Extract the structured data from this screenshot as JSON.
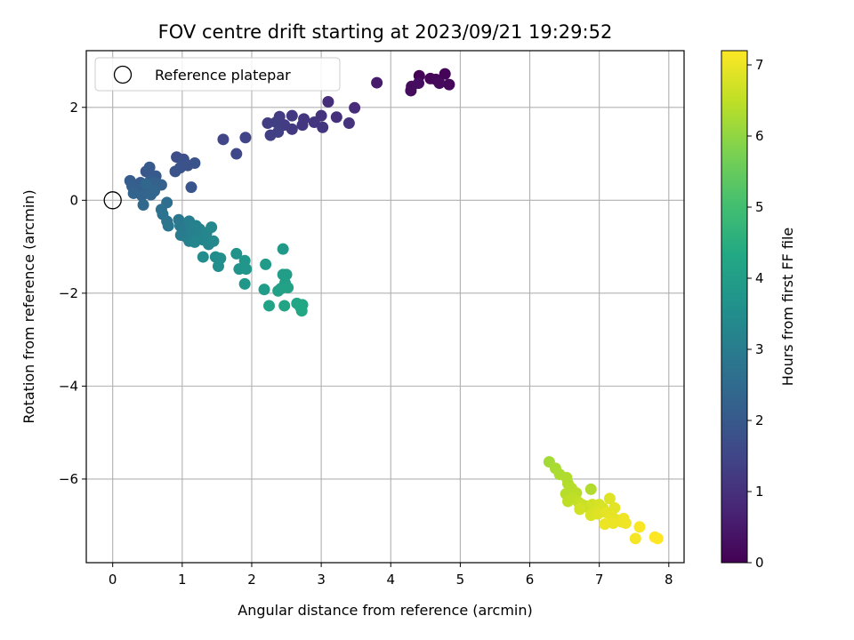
{
  "chart_data": {
    "type": "scatter",
    "title": "FOV centre drift starting at 2023/09/21 19:29:52",
    "xlabel": "Angular distance from reference (arcmin)",
    "ylabel": "Rotation from reference (arcmin)",
    "xlim": [
      -0.38,
      8.22
    ],
    "ylim": [
      -7.8,
      3.22
    ],
    "xticks": [
      0,
      1,
      2,
      3,
      4,
      5,
      6,
      7,
      8
    ],
    "yticks": [
      -6,
      -4,
      -2,
      0,
      2
    ],
    "grid": true,
    "legend": {
      "placement": "top-left",
      "entries": [
        "Reference platepar"
      ]
    },
    "reference_point": {
      "x": 0,
      "y": 0
    },
    "colorbar": {
      "label": "Hours from first FF file",
      "range": [
        0,
        7.2
      ],
      "ticks": [
        0,
        1,
        2,
        3,
        4,
        5,
        6,
        7
      ],
      "colormap": "viridis"
    },
    "points": [
      {
        "x": 4.41,
        "y": 2.68,
        "c": 0.05
      },
      {
        "x": 4.57,
        "y": 2.62,
        "c": 0.1
      },
      {
        "x": 4.65,
        "y": 2.6,
        "c": 0.12
      },
      {
        "x": 4.78,
        "y": 2.72,
        "c": 0.08
      },
      {
        "x": 4.84,
        "y": 2.49,
        "c": 0.15
      },
      {
        "x": 4.7,
        "y": 2.52,
        "c": 0.18
      },
      {
        "x": 4.3,
        "y": 2.45,
        "c": 0.2
      },
      {
        "x": 4.29,
        "y": 2.36,
        "c": 0.22
      },
      {
        "x": 4.4,
        "y": 2.52,
        "c": 0.25
      },
      {
        "x": 3.8,
        "y": 2.53,
        "c": 0.55
      },
      {
        "x": 3.48,
        "y": 1.99,
        "c": 0.9
      },
      {
        "x": 3.1,
        "y": 2.12,
        "c": 0.95
      },
      {
        "x": 3.22,
        "y": 1.79,
        "c": 1.0
      },
      {
        "x": 3.4,
        "y": 1.66,
        "c": 1.05
      },
      {
        "x": 3.0,
        "y": 1.82,
        "c": 1.05
      },
      {
        "x": 3.02,
        "y": 1.57,
        "c": 1.1
      },
      {
        "x": 2.9,
        "y": 1.68,
        "c": 1.1
      },
      {
        "x": 2.75,
        "y": 1.75,
        "c": 1.15
      },
      {
        "x": 2.73,
        "y": 1.62,
        "c": 1.15
      },
      {
        "x": 2.58,
        "y": 1.82,
        "c": 1.2
      },
      {
        "x": 2.58,
        "y": 1.53,
        "c": 1.2
      },
      {
        "x": 2.47,
        "y": 1.62,
        "c": 1.25
      },
      {
        "x": 2.4,
        "y": 1.8,
        "c": 1.25
      },
      {
        "x": 2.35,
        "y": 1.68,
        "c": 1.3
      },
      {
        "x": 2.23,
        "y": 1.66,
        "c": 1.3
      },
      {
        "x": 2.38,
        "y": 1.47,
        "c": 1.35
      },
      {
        "x": 2.27,
        "y": 1.4,
        "c": 1.35
      },
      {
        "x": 1.91,
        "y": 1.35,
        "c": 1.45
      },
      {
        "x": 1.59,
        "y": 1.31,
        "c": 1.5
      },
      {
        "x": 1.78,
        "y": 1.0,
        "c": 1.55
      },
      {
        "x": 0.92,
        "y": 0.93,
        "c": 1.7
      },
      {
        "x": 1.02,
        "y": 0.88,
        "c": 1.75
      },
      {
        "x": 0.97,
        "y": 0.7,
        "c": 1.8
      },
      {
        "x": 1.08,
        "y": 0.75,
        "c": 1.8
      },
      {
        "x": 1.18,
        "y": 0.8,
        "c": 1.85
      },
      {
        "x": 0.9,
        "y": 0.62,
        "c": 1.85
      },
      {
        "x": 1.13,
        "y": 0.28,
        "c": 1.9
      },
      {
        "x": 0.48,
        "y": 0.62,
        "c": 1.95
      },
      {
        "x": 0.53,
        "y": 0.71,
        "c": 2.0
      },
      {
        "x": 0.62,
        "y": 0.52,
        "c": 2.0
      },
      {
        "x": 0.55,
        "y": 0.45,
        "c": 2.05
      },
      {
        "x": 0.4,
        "y": 0.38,
        "c": 2.1
      },
      {
        "x": 0.25,
        "y": 0.42,
        "c": 2.1
      },
      {
        "x": 0.28,
        "y": 0.3,
        "c": 2.15
      },
      {
        "x": 0.35,
        "y": 0.25,
        "c": 2.15
      },
      {
        "x": 0.45,
        "y": 0.2,
        "c": 2.2
      },
      {
        "x": 0.52,
        "y": 0.3,
        "c": 2.2
      },
      {
        "x": 0.6,
        "y": 0.38,
        "c": 2.25
      },
      {
        "x": 0.7,
        "y": 0.33,
        "c": 2.25
      },
      {
        "x": 0.3,
        "y": 0.15,
        "c": 2.3
      },
      {
        "x": 0.42,
        "y": 0.1,
        "c": 2.3
      },
      {
        "x": 0.55,
        "y": 0.12,
        "c": 2.35
      },
      {
        "x": 0.6,
        "y": 0.2,
        "c": 2.35
      },
      {
        "x": 0.48,
        "y": 0.35,
        "c": 2.4
      },
      {
        "x": 0.44,
        "y": -0.1,
        "c": 2.45
      },
      {
        "x": 0.78,
        "y": -0.05,
        "c": 2.6
      },
      {
        "x": 0.7,
        "y": -0.2,
        "c": 2.65
      },
      {
        "x": 0.72,
        "y": -0.3,
        "c": 2.7
      },
      {
        "x": 0.78,
        "y": -0.45,
        "c": 2.75
      },
      {
        "x": 0.8,
        "y": -0.55,
        "c": 2.8
      },
      {
        "x": 0.95,
        "y": -0.42,
        "c": 2.85
      },
      {
        "x": 0.97,
        "y": -0.55,
        "c": 2.9
      },
      {
        "x": 1.02,
        "y": -0.62,
        "c": 2.95
      },
      {
        "x": 0.98,
        "y": -0.75,
        "c": 3.0
      },
      {
        "x": 1.05,
        "y": -0.78,
        "c": 3.0
      },
      {
        "x": 1.1,
        "y": -0.45,
        "c": 3.05
      },
      {
        "x": 1.12,
        "y": -0.6,
        "c": 3.05
      },
      {
        "x": 1.15,
        "y": -0.72,
        "c": 3.1
      },
      {
        "x": 1.1,
        "y": -0.88,
        "c": 3.1
      },
      {
        "x": 1.2,
        "y": -0.55,
        "c": 3.15
      },
      {
        "x": 1.25,
        "y": -0.62,
        "c": 3.2
      },
      {
        "x": 1.28,
        "y": -0.75,
        "c": 3.2
      },
      {
        "x": 1.18,
        "y": -0.9,
        "c": 3.25
      },
      {
        "x": 1.3,
        "y": -0.85,
        "c": 3.25
      },
      {
        "x": 1.35,
        "y": -0.7,
        "c": 3.3
      },
      {
        "x": 1.38,
        "y": -0.95,
        "c": 3.3
      },
      {
        "x": 1.42,
        "y": -0.58,
        "c": 3.35
      },
      {
        "x": 1.45,
        "y": -0.88,
        "c": 3.35
      },
      {
        "x": 1.3,
        "y": -1.22,
        "c": 3.45
      },
      {
        "x": 1.48,
        "y": -1.22,
        "c": 3.5
      },
      {
        "x": 1.52,
        "y": -1.42,
        "c": 3.55
      },
      {
        "x": 1.55,
        "y": -1.25,
        "c": 3.55
      },
      {
        "x": 1.78,
        "y": -1.15,
        "c": 3.65
      },
      {
        "x": 1.82,
        "y": -1.48,
        "c": 3.7
      },
      {
        "x": 1.9,
        "y": -1.3,
        "c": 3.75
      },
      {
        "x": 1.92,
        "y": -1.48,
        "c": 3.75
      },
      {
        "x": 1.9,
        "y": -1.8,
        "c": 3.8
      },
      {
        "x": 2.45,
        "y": -1.05,
        "c": 3.85
      },
      {
        "x": 2.2,
        "y": -1.38,
        "c": 3.9
      },
      {
        "x": 2.18,
        "y": -1.92,
        "c": 3.95
      },
      {
        "x": 2.45,
        "y": -1.6,
        "c": 4.0
      },
      {
        "x": 2.5,
        "y": -1.6,
        "c": 4.0
      },
      {
        "x": 2.48,
        "y": -1.78,
        "c": 4.05
      },
      {
        "x": 2.42,
        "y": -1.9,
        "c": 4.05
      },
      {
        "x": 2.38,
        "y": -1.95,
        "c": 4.1
      },
      {
        "x": 2.52,
        "y": -1.88,
        "c": 4.1
      },
      {
        "x": 2.25,
        "y": -2.27,
        "c": 4.15
      },
      {
        "x": 2.47,
        "y": -2.27,
        "c": 4.2
      },
      {
        "x": 2.65,
        "y": -2.22,
        "c": 4.25
      },
      {
        "x": 2.7,
        "y": -2.3,
        "c": 4.25
      },
      {
        "x": 2.72,
        "y": -2.38,
        "c": 4.3
      },
      {
        "x": 2.73,
        "y": -2.25,
        "c": 4.3
      },
      {
        "x": 6.28,
        "y": -5.63,
        "c": 6.2
      },
      {
        "x": 6.37,
        "y": -5.77,
        "c": 6.25
      },
      {
        "x": 6.43,
        "y": -5.9,
        "c": 6.3
      },
      {
        "x": 6.53,
        "y": -5.97,
        "c": 6.35
      },
      {
        "x": 6.55,
        "y": -6.1,
        "c": 6.35
      },
      {
        "x": 6.88,
        "y": -6.22,
        "c": 6.35
      },
      {
        "x": 6.6,
        "y": -6.2,
        "c": 6.4
      },
      {
        "x": 6.52,
        "y": -6.32,
        "c": 6.4
      },
      {
        "x": 6.67,
        "y": -6.3,
        "c": 6.45
      },
      {
        "x": 6.62,
        "y": -6.42,
        "c": 6.5
      },
      {
        "x": 6.55,
        "y": -6.48,
        "c": 6.5
      },
      {
        "x": 6.7,
        "y": -6.5,
        "c": 6.55
      },
      {
        "x": 6.75,
        "y": -6.55,
        "c": 6.6
      },
      {
        "x": 6.8,
        "y": -6.58,
        "c": 6.6
      },
      {
        "x": 6.85,
        "y": -6.62,
        "c": 6.65
      },
      {
        "x": 6.9,
        "y": -6.55,
        "c": 6.7
      },
      {
        "x": 6.72,
        "y": -6.65,
        "c": 6.7
      },
      {
        "x": 6.95,
        "y": -6.68,
        "c": 6.75
      },
      {
        "x": 7.0,
        "y": -6.55,
        "c": 6.75
      },
      {
        "x": 7.05,
        "y": -6.62,
        "c": 6.8
      },
      {
        "x": 6.88,
        "y": -6.78,
        "c": 6.8
      },
      {
        "x": 6.98,
        "y": -6.75,
        "c": 6.85
      },
      {
        "x": 7.15,
        "y": -6.42,
        "c": 6.85
      },
      {
        "x": 7.1,
        "y": -6.72,
        "c": 6.9
      },
      {
        "x": 7.22,
        "y": -6.62,
        "c": 6.9
      },
      {
        "x": 7.18,
        "y": -6.8,
        "c": 6.95
      },
      {
        "x": 7.25,
        "y": -6.88,
        "c": 6.95
      },
      {
        "x": 7.08,
        "y": -6.97,
        "c": 7.0
      },
      {
        "x": 7.2,
        "y": -6.95,
        "c": 7.0
      },
      {
        "x": 7.32,
        "y": -6.92,
        "c": 7.0
      },
      {
        "x": 7.38,
        "y": -6.95,
        "c": 7.05
      },
      {
        "x": 7.35,
        "y": -6.85,
        "c": 7.05
      },
      {
        "x": 7.52,
        "y": -7.28,
        "c": 7.1
      },
      {
        "x": 7.58,
        "y": -7.03,
        "c": 7.15
      },
      {
        "x": 7.8,
        "y": -7.25,
        "c": 7.2
      },
      {
        "x": 7.84,
        "y": -7.28,
        "c": 7.2
      }
    ]
  }
}
